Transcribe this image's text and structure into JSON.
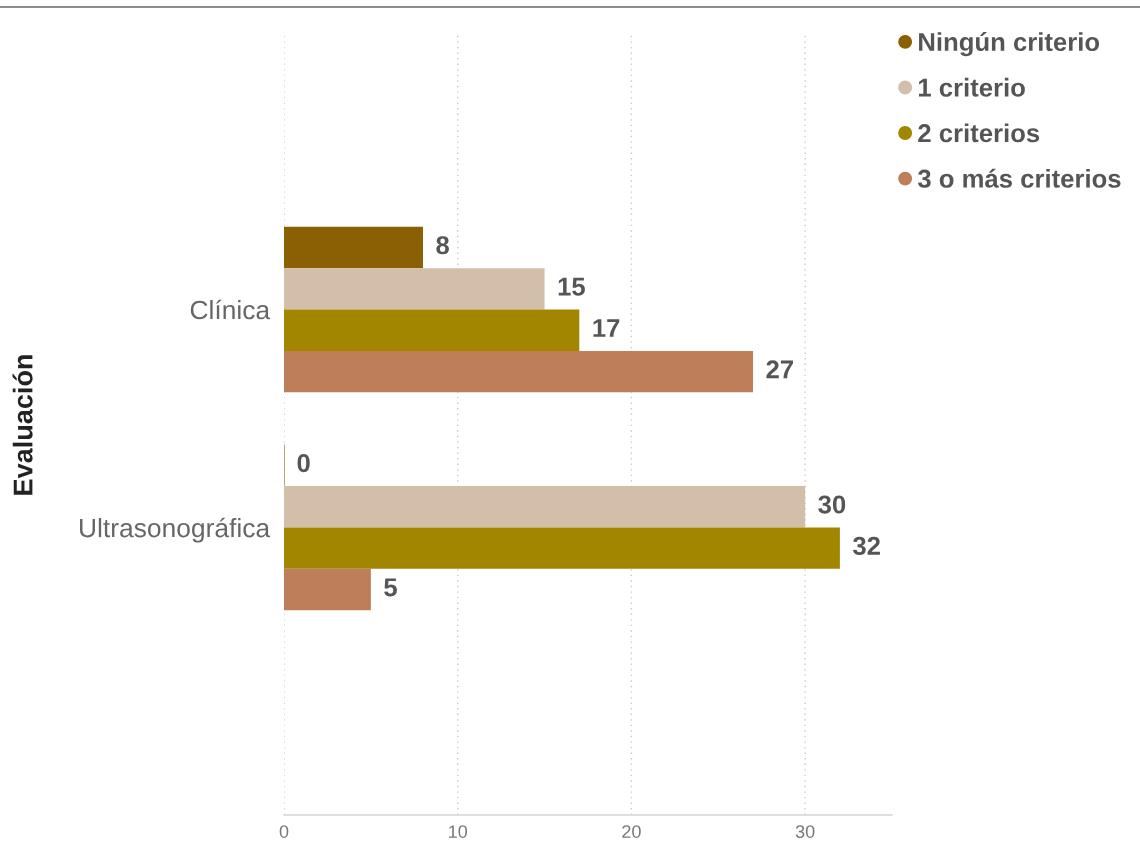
{
  "chart_data": {
    "type": "bar",
    "orientation": "horizontal",
    "ylabel": "Evaluación",
    "categories": [
      "Clínica",
      "Ultrasonográfica"
    ],
    "series": [
      {
        "name": "Ningún criterio",
        "color": "#8b5f03",
        "values": [
          8,
          0
        ]
      },
      {
        "name": "1 criterio",
        "color": "#d3bfa9",
        "values": [
          15,
          30
        ]
      },
      {
        "name": "2 criterios",
        "color": "#a38600",
        "values": [
          17,
          32
        ]
      },
      {
        "name": "3 o más criterios",
        "color": "#bf7e5a",
        "values": [
          27,
          5
        ]
      }
    ],
    "xlim": [
      0,
      35
    ],
    "xticks": [
      0,
      10,
      20,
      30
    ],
    "grid": "x",
    "legend": "top right",
    "data_labels": true
  }
}
